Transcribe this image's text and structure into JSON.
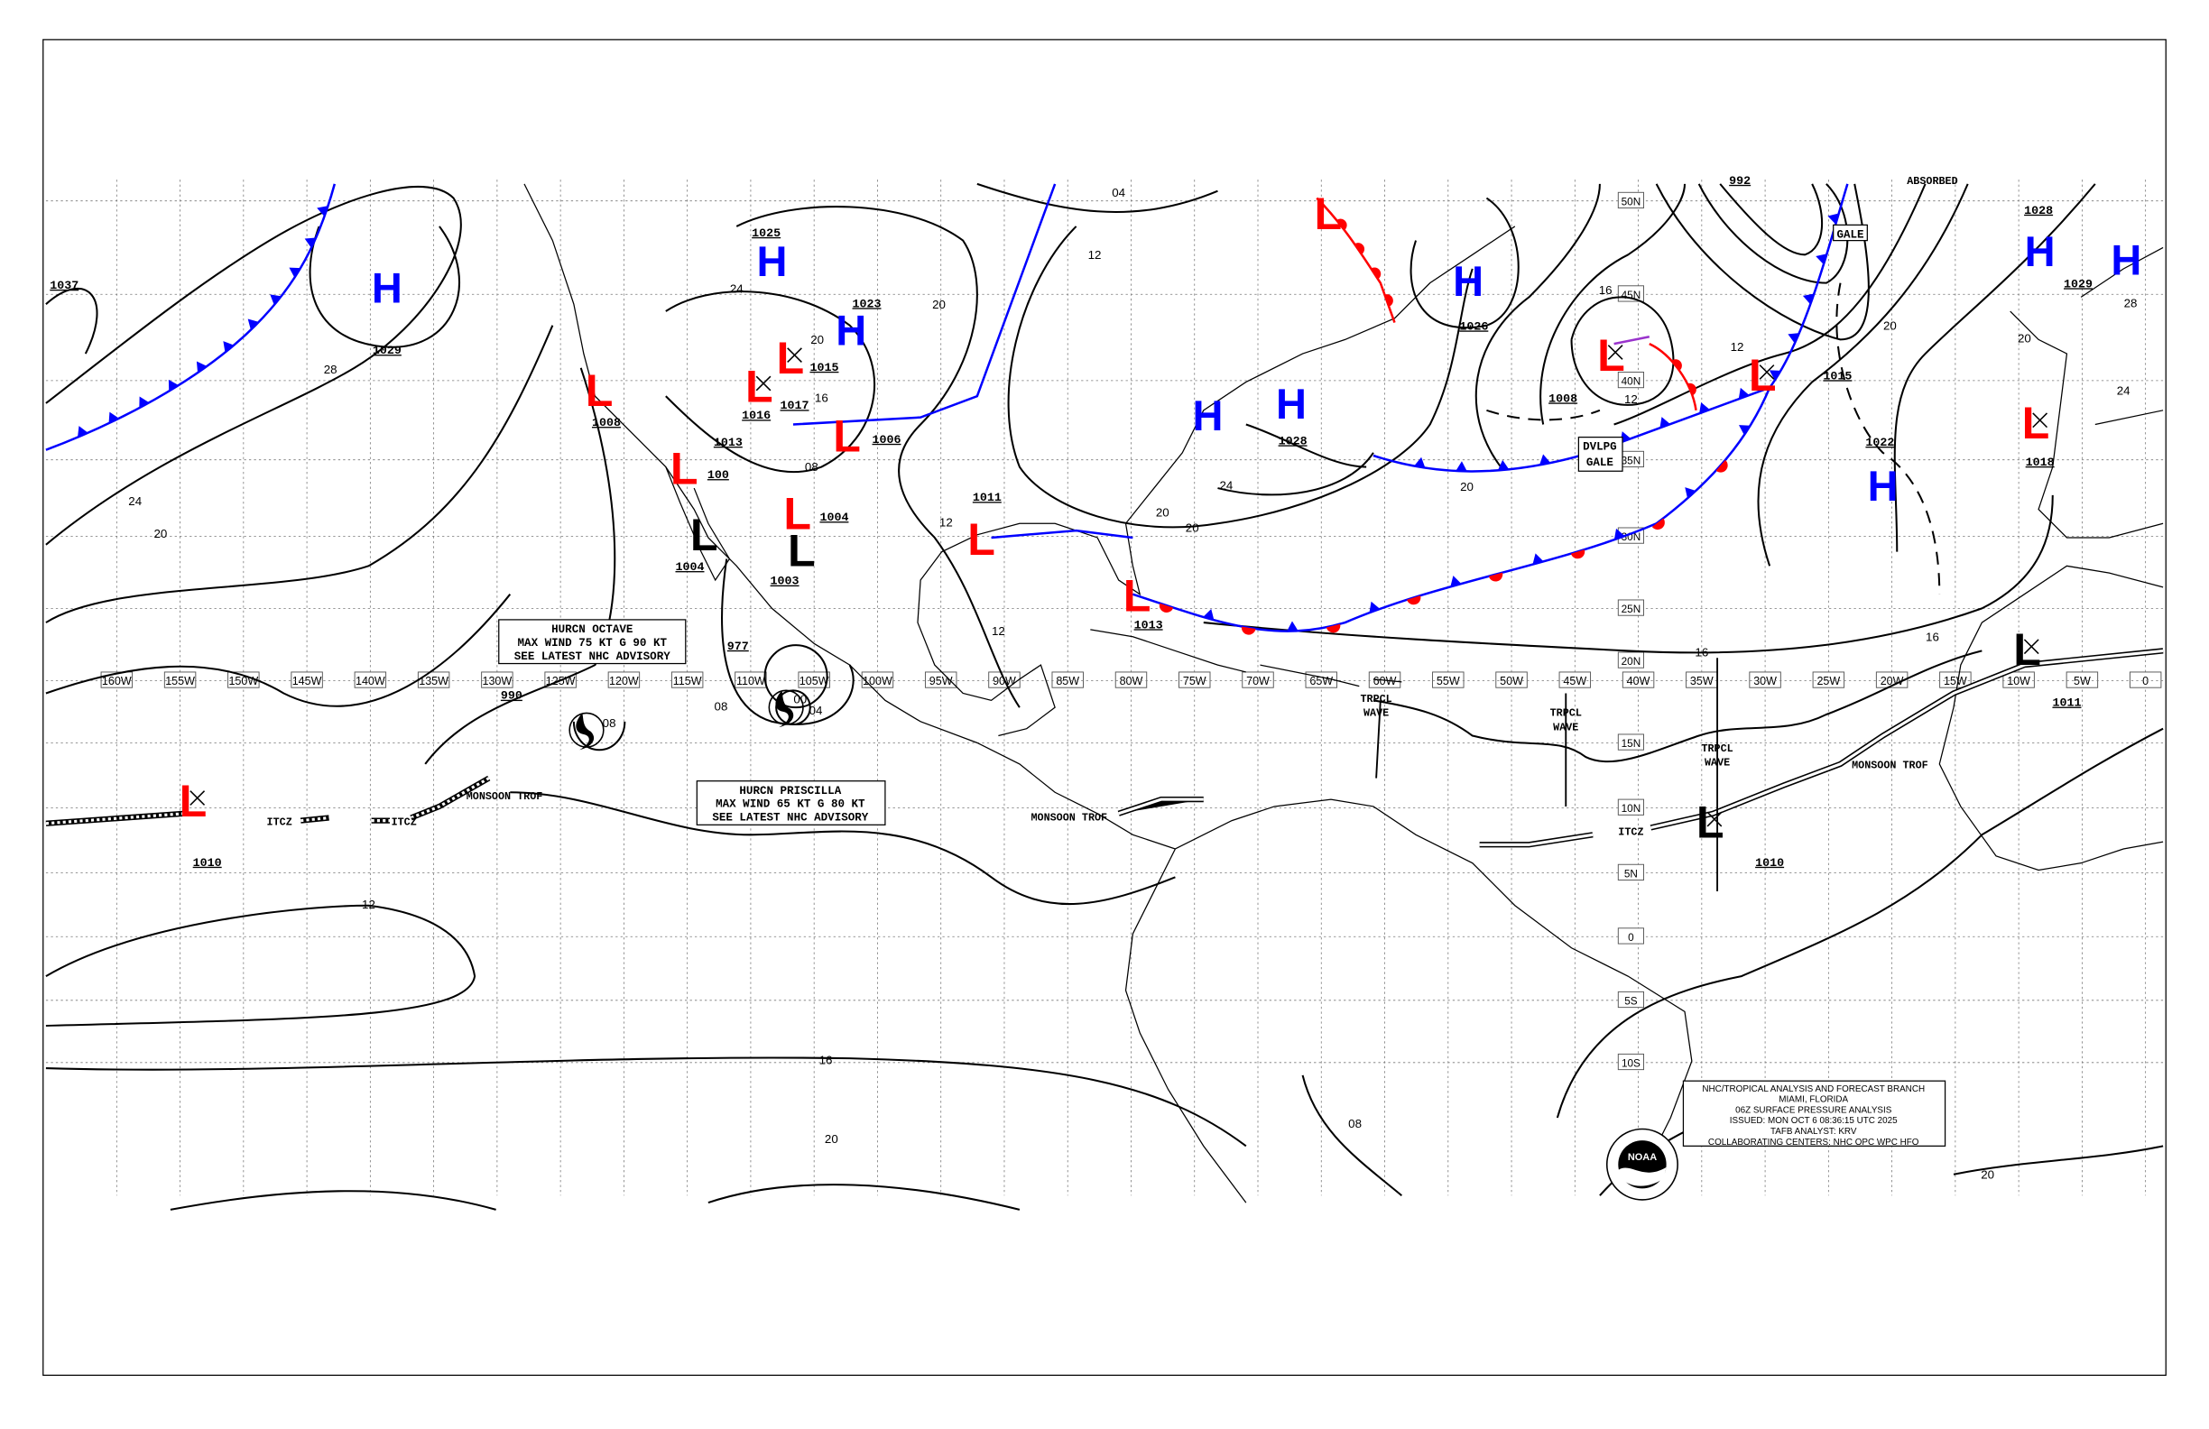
{
  "title_block": {
    "lines": [
      "NHC/TROPICAL ANALYSIS AND FORECAST BRANCH",
      "MIAMI, FLORIDA",
      "06Z SURFACE PRESSURE ANALYSIS",
      "ISSUED: MON OCT 6 08:36:15 UTC 2025",
      "TAFB ANALYST: KRV",
      "COLLABORATING CENTERS: NHC OPC WPC HFO"
    ],
    "logo_text": "NOAA"
  },
  "grid": {
    "longitude_labels": [
      "160W",
      "155W",
      "150W",
      "145W",
      "140W",
      "135W",
      "130W",
      "125W",
      "120W",
      "115W",
      "110W",
      "105W",
      "100W",
      "95W",
      "90W",
      "85W",
      "80W",
      "75W",
      "70W",
      "65W",
      "60W",
      "55W",
      "50W",
      "45W",
      "40W",
      "35W",
      "30W",
      "25W",
      "20W",
      "15W",
      "10W",
      "5W",
      "0"
    ],
    "latitude_labels": [
      "50N",
      "45N",
      "40N",
      "35N",
      "30N",
      "25N",
      "20N",
      "15N",
      "10N",
      "5N",
      "0",
      "5S",
      "10S"
    ]
  },
  "colors": {
    "high": "#0000ff",
    "low": "#ff0000",
    "low_tropical": "#000000",
    "cold_front": "#0000ff",
    "warm_front": "#ff0000",
    "occluded": "#9933cc"
  },
  "pressure_centers": [
    {
      "type": "H",
      "value": "1029"
    },
    {
      "type": "H",
      "value": "1025"
    },
    {
      "type": "H",
      "value": "1023"
    },
    {
      "type": "H",
      "value": ""
    },
    {
      "type": "H",
      "value": "1028"
    },
    {
      "type": "H",
      "value": "1026"
    },
    {
      "type": "H",
      "value": "1022"
    },
    {
      "type": "H",
      "value": "1028"
    },
    {
      "type": "H",
      "value": "1029"
    },
    {
      "type": "L",
      "value": "1008"
    },
    {
      "type": "L",
      "value": "100"
    },
    {
      "type": "L",
      "value": "1016"
    },
    {
      "type": "L",
      "value": "1015"
    },
    {
      "type": "L",
      "value": "1006"
    },
    {
      "type": "L",
      "value": "1004"
    },
    {
      "type": "L",
      "value": "1011"
    },
    {
      "type": "L",
      "value": "1013"
    },
    {
      "type": "L",
      "value": "1008"
    },
    {
      "type": "L",
      "value": "1015"
    },
    {
      "type": "L",
      "value": "1018"
    },
    {
      "type": "L",
      "value": "1010"
    },
    {
      "type": "L",
      "value": ""
    },
    {
      "type": "L",
      "value": "1004"
    },
    {
      "type": "L",
      "value": "1003"
    },
    {
      "type": "L",
      "value": "1010"
    },
    {
      "type": "L",
      "value": "1011"
    }
  ],
  "pressure_values_other": [
    "1037",
    "992",
    "977",
    "990",
    "1017",
    "1013"
  ],
  "isobar_labels": [
    "28",
    "24",
    "20",
    "24",
    "20",
    "16",
    "08",
    "12",
    "12",
    "20",
    "20",
    "24",
    "20",
    "20",
    "16",
    "12",
    "12",
    "20",
    "20",
    "28",
    "24",
    "16",
    "16",
    "12",
    "16",
    "20",
    "08",
    "20",
    "04",
    "12",
    "08",
    "00",
    "04",
    "08"
  ],
  "feature_labels": [
    "ITCZ",
    "ITCZ",
    "MONSOON TROF",
    "MONSOON TROF",
    "MONSOON TROF",
    "TRPCL WAVE",
    "TRPCL WAVE",
    "TRPCL WAVE",
    "ITCZ",
    "ABSORBED"
  ],
  "warnings": {
    "gale": "GALE",
    "dvlpg_gale_1": "DVLPG",
    "dvlpg_gale_2": "GALE"
  },
  "hurricanes": [
    {
      "line1": "HURCN OCTAVE",
      "line2": "MAX WIND 75 KT G 90 KT",
      "line3": "SEE LATEST NHC ADVISORY"
    },
    {
      "line1": "HURCN PRISCILLA",
      "line2": "MAX WIND 65 KT G 80 KT",
      "line3": "SEE LATEST NHC ADVISORY"
    }
  ]
}
